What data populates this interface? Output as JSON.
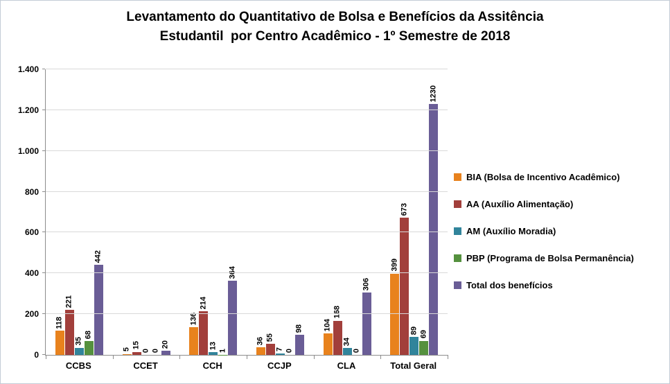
{
  "title": {
    "line1": "Levantamento do Quantitativo de Bolsa e Benefícios da Assitência",
    "line2": "Estudantil  por Centro Acadêmico - 1º Semestre de 2018"
  },
  "chart_data": {
    "type": "bar",
    "title": "Levantamento do Quantitativo de Bolsa e Benefícios da Assitência Estudantil por Centro Acadêmico - 1º Semestre de 2018",
    "categories": [
      "CCBS",
      "CCET",
      "CCH",
      "CCJP",
      "CLA",
      "Total Geral"
    ],
    "series": [
      {
        "name": "BIA (Bolsa de Incentivo Acadêmico)",
        "color": "#E8821D",
        "values": [
          118,
          5,
          136,
          36,
          104,
          399
        ]
      },
      {
        "name": "AA (Auxílio Alimentação)",
        "color": "#A23F3B",
        "values": [
          221,
          15,
          214,
          55,
          168,
          673
        ]
      },
      {
        "name": "AM (Auxílio Moradia)",
        "color": "#31849B",
        "values": [
          35,
          0,
          13,
          7,
          34,
          89
        ]
      },
      {
        "name": "PBP (Programa de Bolsa Permanência)",
        "color": "#55913E",
        "values": [
          68,
          0,
          1,
          0,
          0,
          69
        ]
      },
      {
        "name": "Total dos benefícios",
        "color": "#6A5D96",
        "values": [
          442,
          20,
          364,
          98,
          306,
          1230
        ]
      }
    ],
    "ylim": [
      0,
      1400
    ],
    "ytick_interval": 200,
    "ytick_labels": [
      "0",
      "200",
      "400",
      "600",
      "800",
      "1.000",
      "1.200",
      "1.400"
    ],
    "grid": true,
    "legend_position": "right",
    "value_labels_rotated": true,
    "axis_color": "#8c8c8c",
    "grid_color": "#d9d9d9"
  }
}
